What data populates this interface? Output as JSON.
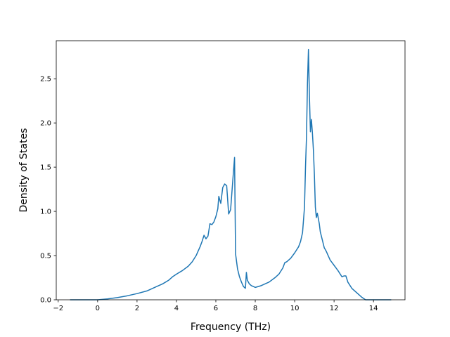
{
  "chart_data": {
    "type": "line",
    "title": "",
    "xlabel": "Frequency (THz)",
    "ylabel": "Density of States",
    "xlim": [
      -2.1,
      15.6
    ],
    "ylim": [
      0,
      2.93
    ],
    "xticks": [
      -2,
      0,
      2,
      4,
      6,
      8,
      10,
      12,
      14
    ],
    "xtick_labels": [
      "−2",
      "0",
      "2",
      "4",
      "6",
      "8",
      "10",
      "12",
      "14"
    ],
    "yticks": [
      0.0,
      0.5,
      1.0,
      1.5,
      2.0,
      2.5
    ],
    "ytick_labels": [
      "0.0",
      "0.5",
      "1.0",
      "1.5",
      "2.0",
      "2.5"
    ],
    "grid": false,
    "series": [
      {
        "name": "",
        "color": "#1f77b4",
        "x": [
          -1.4,
          -0.5,
          0,
          0.5,
          1.0,
          1.5,
          2.0,
          2.5,
          3.0,
          3.3,
          3.6,
          3.8,
          4.0,
          4.3,
          4.6,
          4.8,
          5.0,
          5.1,
          5.2,
          5.3,
          5.4,
          5.5,
          5.6,
          5.7,
          5.8,
          5.9,
          6.0,
          6.1,
          6.15,
          6.25,
          6.35,
          6.45,
          6.55,
          6.65,
          6.75,
          6.85,
          6.95,
          7.0,
          7.1,
          7.2,
          7.3,
          7.4,
          7.5,
          7.55,
          7.6,
          7.7,
          7.8,
          8.0,
          8.3,
          8.7,
          9.0,
          9.2,
          9.4,
          9.5,
          9.6,
          9.8,
          10.0,
          10.2,
          10.3,
          10.4,
          10.5,
          10.55,
          10.6,
          10.65,
          10.7,
          10.75,
          10.8,
          10.85,
          10.9,
          10.95,
          11.0,
          11.05,
          11.1,
          11.15,
          11.2,
          11.25,
          11.3,
          11.4,
          11.5,
          11.6,
          11.7,
          11.8,
          12.0,
          12.2,
          12.4,
          12.5,
          12.6,
          12.7,
          12.9,
          13.2,
          13.4,
          13.6,
          14.0,
          14.5,
          14.9
        ],
        "y": [
          0.0,
          0.0,
          0.0,
          0.01,
          0.025,
          0.045,
          0.07,
          0.1,
          0.15,
          0.18,
          0.22,
          0.26,
          0.29,
          0.33,
          0.38,
          0.43,
          0.5,
          0.55,
          0.6,
          0.66,
          0.73,
          0.69,
          0.72,
          0.86,
          0.85,
          0.88,
          0.94,
          1.03,
          1.17,
          1.09,
          1.27,
          1.31,
          1.29,
          0.97,
          1.02,
          1.32,
          1.61,
          0.52,
          0.35,
          0.26,
          0.2,
          0.15,
          0.13,
          0.31,
          0.22,
          0.18,
          0.16,
          0.14,
          0.16,
          0.2,
          0.25,
          0.29,
          0.36,
          0.42,
          0.43,
          0.47,
          0.53,
          0.6,
          0.66,
          0.76,
          1.05,
          1.5,
          1.84,
          2.45,
          2.83,
          2.3,
          1.9,
          2.04,
          1.89,
          1.7,
          1.42,
          1.05,
          0.93,
          0.98,
          0.92,
          0.86,
          0.77,
          0.68,
          0.59,
          0.55,
          0.5,
          0.45,
          0.39,
          0.33,
          0.26,
          0.27,
          0.27,
          0.2,
          0.13,
          0.07,
          0.03,
          0.0,
          0.0,
          0.0,
          0.0
        ]
      }
    ]
  }
}
